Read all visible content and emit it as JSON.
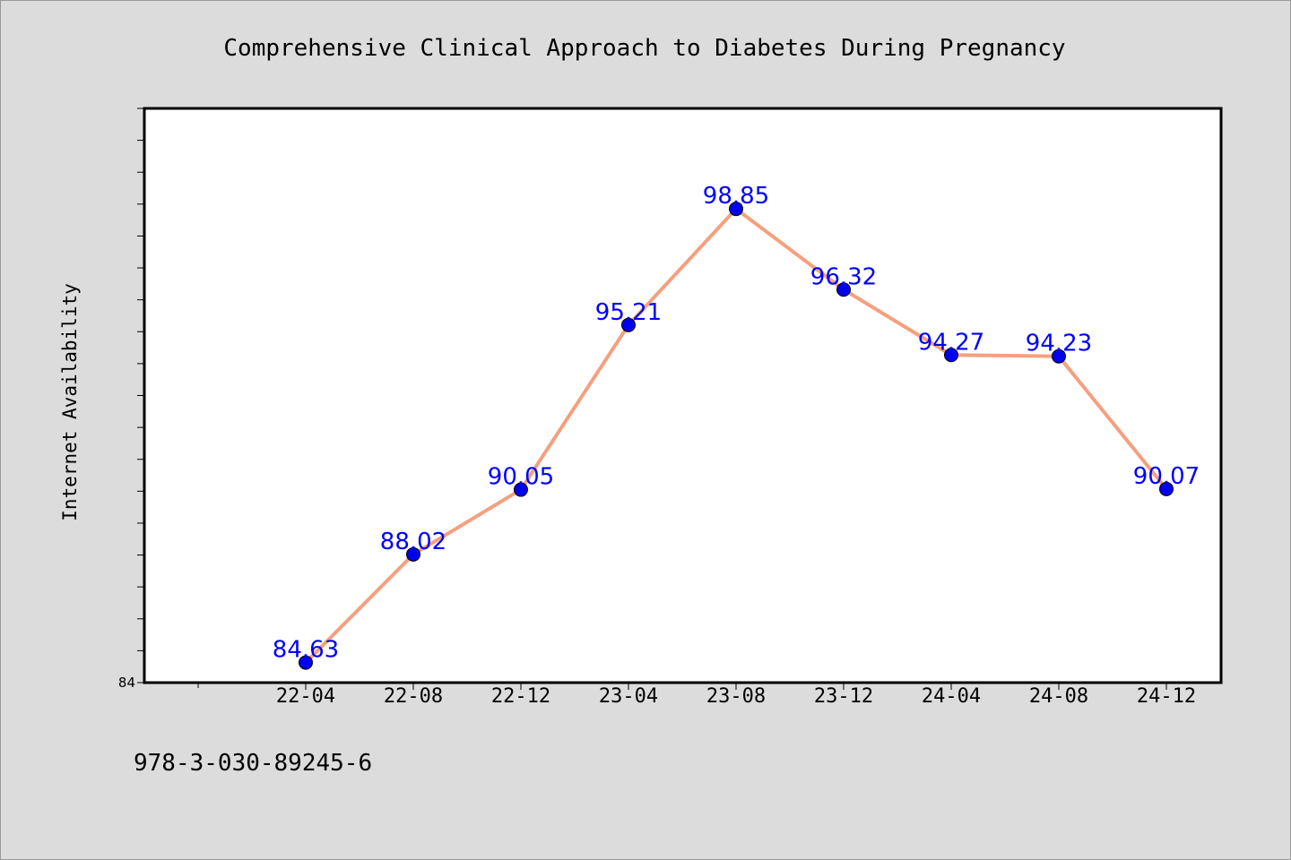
{
  "chart_data": {
    "type": "line",
    "title": "Comprehensive Clinical Approach to Diabetes During Pregnancy",
    "xlabel": "",
    "ylabel": "Internet Availability",
    "categories": [
      "22-04",
      "22-08",
      "22-12",
      "23-04",
      "23-08",
      "23-12",
      "24-04",
      "24-08",
      "24-12"
    ],
    "series": [
      {
        "values": [
          84.63,
          88.02,
          90.05,
          95.21,
          98.85,
          96.32,
          94.27,
          94.23,
          90.07
        ]
      }
    ],
    "data_labels": [
      "84.63",
      "88.02",
      "90.05",
      "95.21",
      "98.85",
      "96.32",
      "94.27",
      "94.23",
      "90.07"
    ],
    "y_tick_label": "84",
    "ylim": [
      84,
      102
    ],
    "grid": false,
    "legend": "none",
    "colors": {
      "line": "#f4a07e",
      "marker": "#0000ee",
      "marker_edge": "#000000",
      "data_label": "#0000ff",
      "plot_bg": "#ffffff",
      "page_bg": "#dcdcdc"
    }
  },
  "footer": {
    "isbn": "978-3-030-89245-6"
  }
}
